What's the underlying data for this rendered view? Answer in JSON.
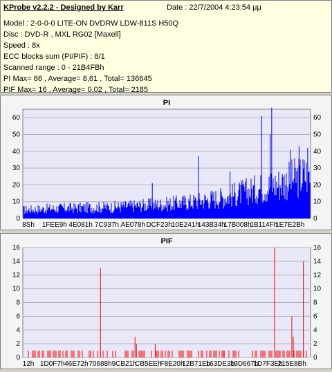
{
  "info": {
    "app_title": "KProbe v2.2.2 - Designed by Karr",
    "date": "Date : 22/7/2004 4:23:54 μμ",
    "lines": [
      "Model : 2-0-0-0 LITE-ON DVDRW LDW-811S   H50Q",
      "Disc : DVD-R , MXL RG02 [Maxell]",
      "Speed : 8x",
      "ECC blocks sum (PI/PIF) : 8/1",
      "Scanned range : 0 - 21B4FBh",
      "PI Max= 66 , Average= 8,61 , Total= 136645",
      "PIF Max= 16 , Average= 0,02 , Total= 2185"
    ]
  },
  "colors": {
    "pi": "#0000ff",
    "pif": "#ff0000",
    "plot_bg": "#e8e8f8",
    "grid": "#b0b0c0"
  },
  "chart_data": [
    {
      "type": "bar",
      "title": "PI",
      "ylim": [
        0,
        65
      ],
      "yticks": [
        0,
        10,
        20,
        30,
        40,
        50,
        60
      ],
      "xticks": [
        "8Sh",
        "1FEE9h",
        "4E081h",
        "7C937h",
        "AE078h",
        "DCF23h",
        "10E241h",
        "143B34h",
        "17B008h",
        "1B114Fh",
        "1E7E2Bh"
      ],
      "grid": true,
      "baseline": [
        [
          0,
          6
        ],
        [
          0.1,
          7
        ],
        [
          0.2,
          7.5
        ],
        [
          0.3,
          8
        ],
        [
          0.4,
          9
        ],
        [
          0.5,
          10
        ],
        [
          0.6,
          12
        ],
        [
          0.7,
          15
        ],
        [
          0.8,
          20
        ],
        [
          0.9,
          25
        ],
        [
          1.0,
          32
        ]
      ],
      "spikes": [
        [
          0.61,
          37
        ],
        [
          0.45,
          21
        ],
        [
          0.83,
          61
        ],
        [
          0.86,
          50
        ],
        [
          0.865,
          66
        ],
        [
          0.72,
          28
        ],
        [
          0.93,
          41
        ],
        [
          0.96,
          43
        ],
        [
          0.99,
          42
        ]
      ]
    },
    {
      "type": "bar",
      "title": "PIF",
      "ylim": [
        0,
        16
      ],
      "yticks": [
        0,
        2,
        4,
        6,
        8,
        10,
        12,
        14,
        16
      ],
      "xticks": [
        "12h",
        "1D0F7h",
        "46E72h",
        "70688h",
        "9CB21h",
        "CB5EEh",
        "F8E20h",
        "12B71Eh",
        "163DE3h",
        "19D667h",
        "1D7F3Eh",
        "215E8Bh"
      ],
      "grid": true,
      "spikes": [
        [
          0.27,
          13
        ],
        [
          0.39,
          3
        ],
        [
          0.395,
          2
        ],
        [
          0.875,
          16
        ],
        [
          0.935,
          6
        ],
        [
          0.94,
          3
        ],
        [
          0.975,
          14
        ],
        [
          0.46,
          2
        ],
        [
          0.62,
          1
        ],
        [
          0.7,
          1
        ]
      ]
    }
  ]
}
